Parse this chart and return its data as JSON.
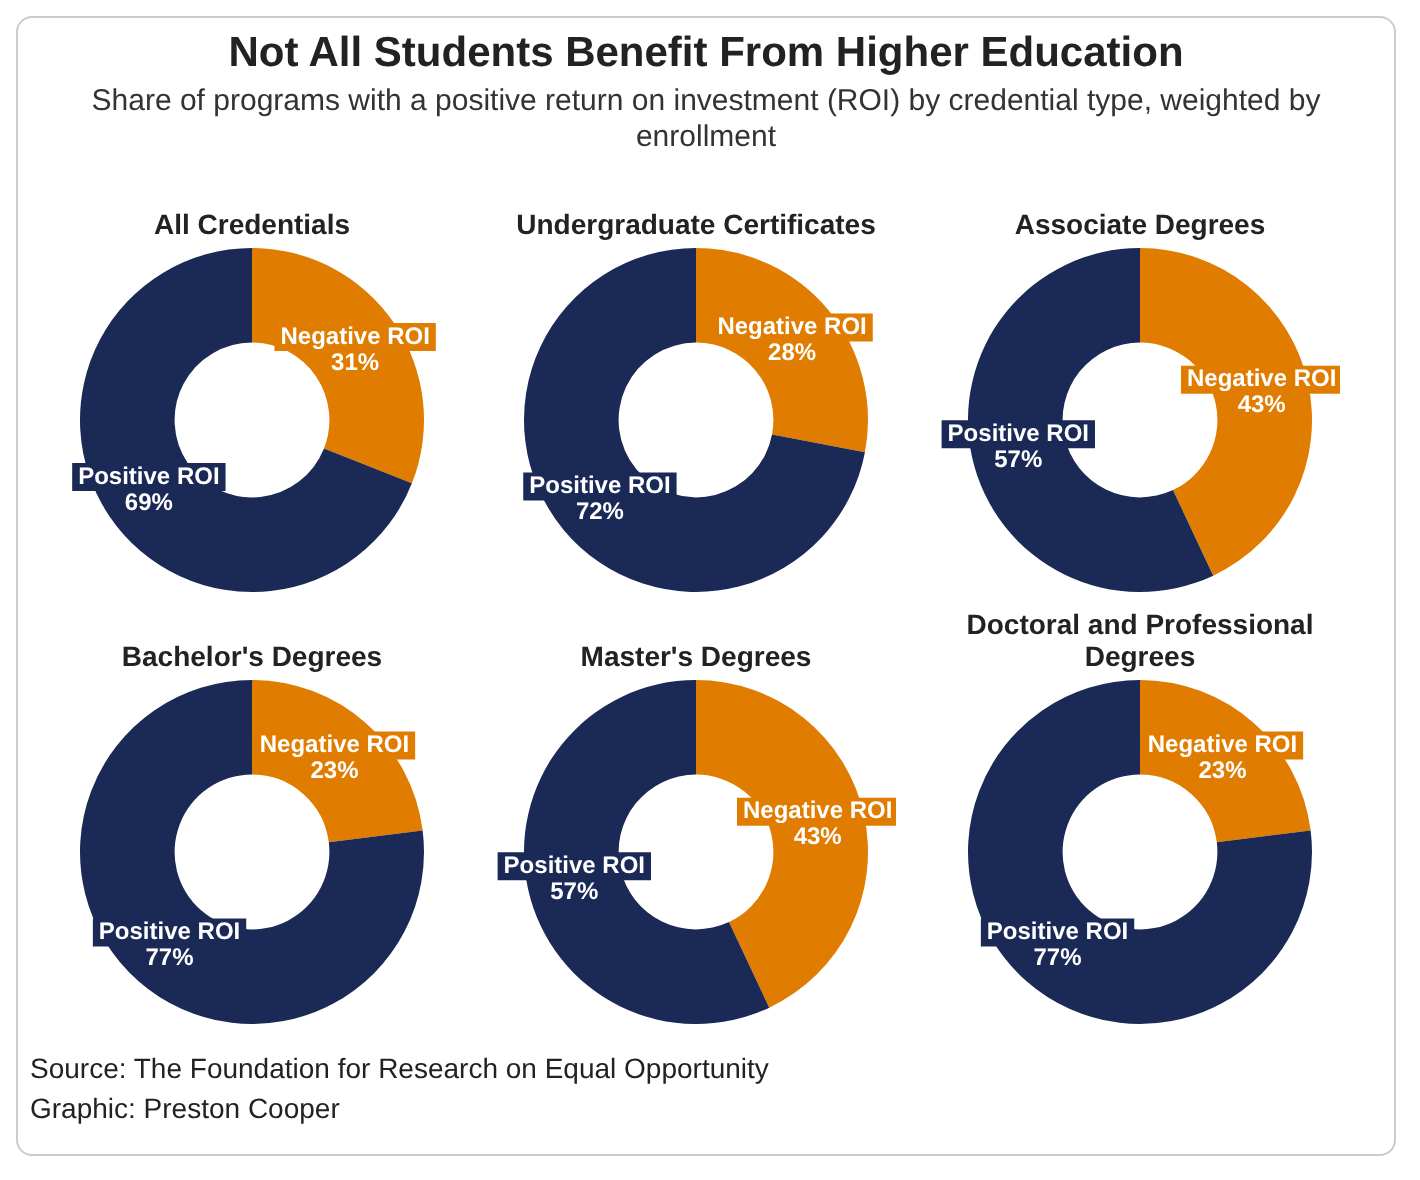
{
  "chart_data": [
    {
      "type": "other",
      "title": "Not All Students Benefit From Higher Education",
      "subtitle": "Share of programs with a positive return on investment (ROI) by credential type, weighted by enrollment"
    },
    {
      "type": "donut",
      "title": "All Credentials",
      "categories": [
        "Negative ROI",
        "Positive ROI"
      ],
      "values": [
        31,
        69
      ],
      "value_labels": [
        "31%",
        "69%"
      ],
      "colors": [
        "#e07c00",
        "#1b2956"
      ]
    },
    {
      "type": "donut",
      "title": "Undergraduate Certificates",
      "categories": [
        "Negative ROI",
        "Positive ROI"
      ],
      "values": [
        28,
        72
      ],
      "value_labels": [
        "28%",
        "72%"
      ],
      "colors": [
        "#e07c00",
        "#1b2956"
      ]
    },
    {
      "type": "donut",
      "title": "Associate Degrees",
      "categories": [
        "Negative ROI",
        "Positive ROI"
      ],
      "values": [
        43,
        57
      ],
      "value_labels": [
        "43%",
        "57%"
      ],
      "colors": [
        "#e07c00",
        "#1b2956"
      ]
    },
    {
      "type": "donut",
      "title": "Bachelor's Degrees",
      "categories": [
        "Negative ROI",
        "Positive ROI"
      ],
      "values": [
        23,
        77
      ],
      "value_labels": [
        "23%",
        "77%"
      ],
      "colors": [
        "#e07c00",
        "#1b2956"
      ]
    },
    {
      "type": "donut",
      "title": "Master's Degrees",
      "categories": [
        "Negative ROI",
        "Positive ROI"
      ],
      "values": [
        43,
        57
      ],
      "value_labels": [
        "43%",
        "57%"
      ],
      "colors": [
        "#e07c00",
        "#1b2956"
      ]
    },
    {
      "type": "donut",
      "title": "Doctoral and Professional Degrees",
      "categories": [
        "Negative ROI",
        "Positive ROI"
      ],
      "values": [
        23,
        77
      ],
      "value_labels": [
        "23%",
        "77%"
      ],
      "colors": [
        "#e07c00",
        "#1b2956"
      ]
    },
    {
      "type": "other",
      "annotations": [
        "Source: The Foundation for Research on Equal Opportunity",
        "Graphic: Preston Cooper"
      ]
    }
  ]
}
